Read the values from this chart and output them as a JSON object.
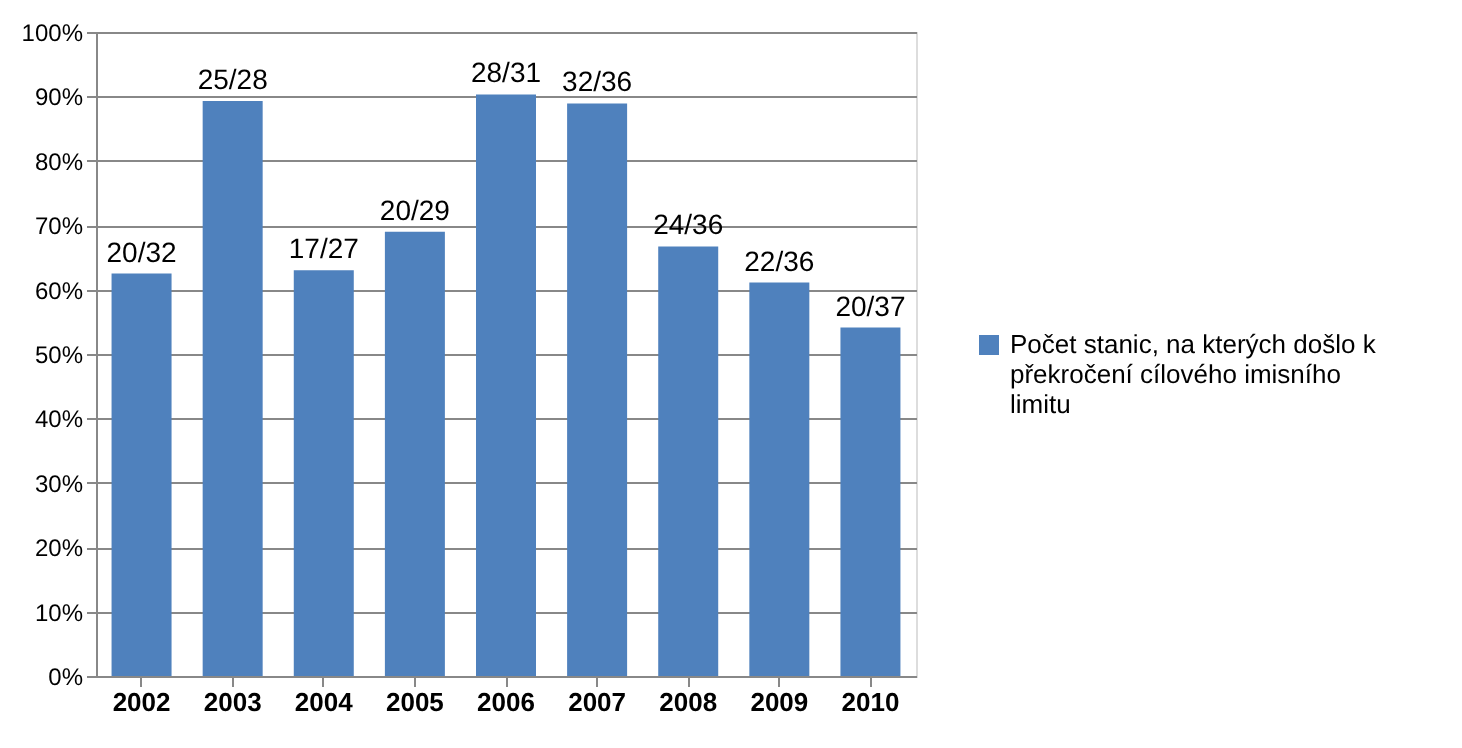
{
  "chart_data": {
    "type": "bar",
    "categories": [
      "2002",
      "2003",
      "2004",
      "2005",
      "2006",
      "2007",
      "2008",
      "2009",
      "2010"
    ],
    "series": [
      {
        "name": "Počet stanic, na kterých došlo k překročení cílového imisního limitu",
        "color": "#4f81bd",
        "values": [
          62.5,
          89.3,
          63.0,
          69.0,
          90.3,
          88.9,
          66.7,
          61.1,
          54.1
        ],
        "value_labels": [
          "20/32",
          "25/28",
          "17/27",
          "20/29",
          "28/31",
          "32/36",
          "24/36",
          "22/36",
          "20/37"
        ]
      }
    ],
    "ylim": [
      0,
      100
    ],
    "yticks": [
      {
        "value": 0,
        "label": "0%"
      },
      {
        "value": 10,
        "label": "10%"
      },
      {
        "value": 20,
        "label": "20%"
      },
      {
        "value": 30,
        "label": "30%"
      },
      {
        "value": 40,
        "label": "40%"
      },
      {
        "value": 50,
        "label": "50%"
      },
      {
        "value": 60,
        "label": "60%"
      },
      {
        "value": 70,
        "label": "70%"
      },
      {
        "value": 80,
        "label": "80%"
      },
      {
        "value": 90,
        "label": "90%"
      },
      {
        "value": 100,
        "label": "100%"
      }
    ],
    "grid": "y",
    "legend": "right"
  }
}
